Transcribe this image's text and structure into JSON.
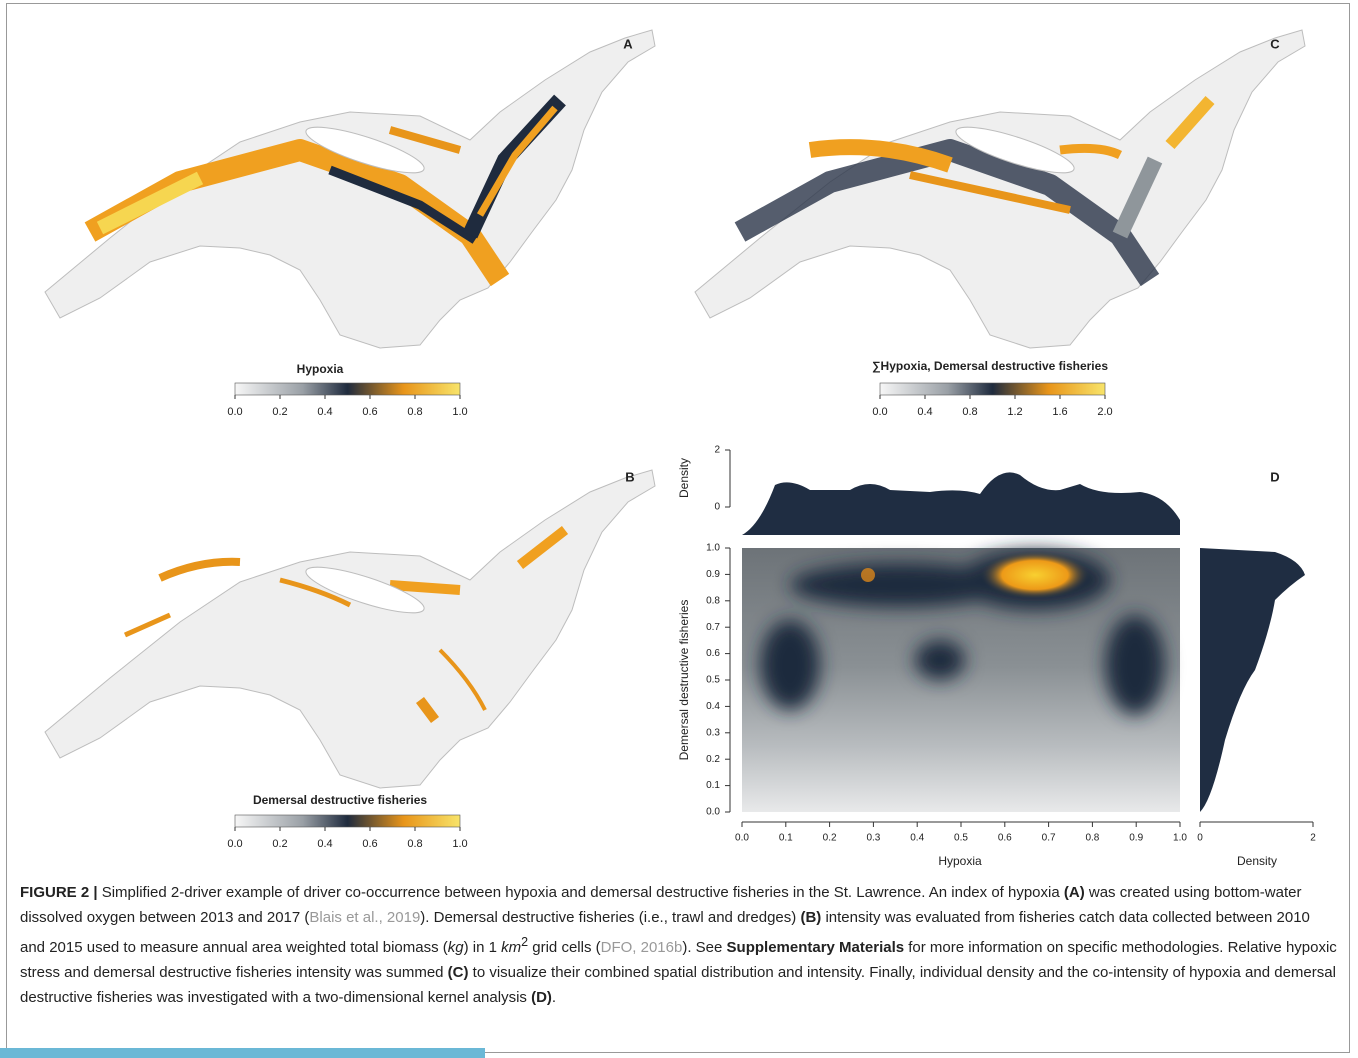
{
  "panels": [
    {
      "label": "A",
      "colorbar": {
        "title": "Hypoxia",
        "lim": [
          0,
          1
        ],
        "ticks": [
          {
            "value": 0,
            "label": "0.0"
          },
          0.2,
          0.4,
          0.6,
          0.8,
          {
            "value": 1,
            "label": "1.0"
          }
        ]
      }
    },
    {
      "label": "C",
      "colorbar": {
        "title": "∑Hypoxia, Demersal destructive fisheries",
        "lim": [
          0,
          2
        ],
        "ticks": [
          {
            "value": 0,
            "label": "0.0"
          },
          0.4,
          0.8,
          1.2,
          1.6,
          {
            "value": 2,
            "label": "2.0"
          }
        ]
      }
    },
    {
      "label": "B",
      "colorbar": {
        "title": "Demersal destructive fisheries",
        "lim": [
          0,
          1
        ],
        "ticks": [
          {
            "value": 0,
            "label": "0.0"
          },
          0.2,
          0.4,
          0.6,
          0.8,
          {
            "value": 1,
            "label": "1.0"
          }
        ]
      }
    }
  ],
  "panel_d": {
    "label": "D",
    "xlabel": "Hypoxia",
    "ylabel": "Demersal destructive fisheries",
    "xlim": [
      0,
      1
    ],
    "xticks": [
      {
        "value": 0,
        "label": "0.0"
      },
      0.1,
      0.2,
      0.3,
      0.4,
      0.5,
      0.6,
      0.7,
      0.8,
      0.9,
      {
        "value": 1,
        "label": "1.0"
      }
    ],
    "ylim": [
      0,
      1
    ],
    "yticks": [
      {
        "value": 0,
        "label": "0.0"
      },
      0.1,
      0.2,
      0.3,
      0.4,
      0.5,
      0.6,
      0.7,
      0.8,
      0.9,
      {
        "value": 1,
        "label": "1.0"
      }
    ],
    "top_density": {
      "ylabel": "Density",
      "ylim": [
        0,
        2
      ],
      "yticks": [
        0,
        2
      ]
    },
    "right_density": {
      "xlabel": "Density",
      "xlim": [
        0,
        2
      ],
      "xticks": [
        0,
        2
      ]
    }
  },
  "caption": [
    {
      "text": "FIGURE 2 |",
      "style": "bold"
    },
    {
      "text": " Simplified 2-driver example of driver co-occurrence between hypoxia and demersal destructive fisheries in the St. Lawrence. An index of hypoxia "
    },
    {
      "text": "(A)",
      "style": "bold"
    },
    {
      "text": " was created using bottom-water dissolved oxygen between 2013 and 2017 ("
    },
    {
      "text": "Blais et al., 2019",
      "style": "link"
    },
    {
      "text": "). Demersal destructive fisheries (i.e., trawl and dredges) "
    },
    {
      "text": "(B)",
      "style": "bold"
    },
    {
      "text": " intensity was evaluated from fisheries catch data collected between 2010 and 2015 used to measure annual area weighted total biomass ("
    },
    {
      "text": "kg",
      "style": "italic"
    },
    {
      "text": ") in 1 "
    },
    {
      "text": "km",
      "style": "italic"
    },
    {
      "text": "2",
      "style": "sup"
    },
    {
      "text": " grid cells ("
    },
    {
      "text": "DFO, 2016b",
      "style": "link"
    },
    {
      "text": "). See "
    },
    {
      "text": "Supplementary Materials",
      "style": "bold"
    },
    {
      "text": " for more information on specific methodologies. Relative hypoxic stress and demersal destructive fisheries intensity was summed "
    },
    {
      "text": "(C)",
      "style": "bold"
    },
    {
      "text": " to visualize their combined spatial distribution and intensity. Finally, individual density and the co-intensity of hypoxia and demersal destructive fisheries was investigated with a two-dimensional kernel analysis "
    },
    {
      "text": "(D)",
      "style": "bold"
    },
    {
      "text": "."
    }
  ]
}
